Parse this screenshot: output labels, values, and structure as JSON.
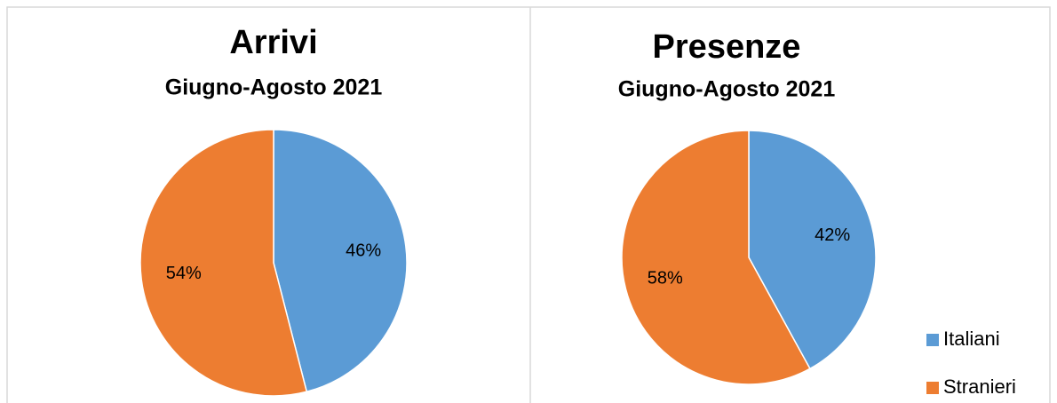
{
  "chart_data": [
    {
      "type": "pie",
      "title": "Arrivi",
      "subtitle": "Giugno-Agosto 2021",
      "categories": [
        "Italiani",
        "Stranieri"
      ],
      "values": [
        46,
        54
      ],
      "value_labels": [
        "46%",
        "54%"
      ],
      "colors": [
        "#5b9bd5",
        "#ed7d31"
      ]
    },
    {
      "type": "pie",
      "title": "Presenze",
      "subtitle": "Giugno-Agosto 2021",
      "categories": [
        "Italiani",
        "Stranieri"
      ],
      "values": [
        42,
        58
      ],
      "value_labels": [
        "42%",
        "58%"
      ],
      "colors": [
        "#5b9bd5",
        "#ed7d31"
      ],
      "legend": "bottom-right"
    }
  ]
}
